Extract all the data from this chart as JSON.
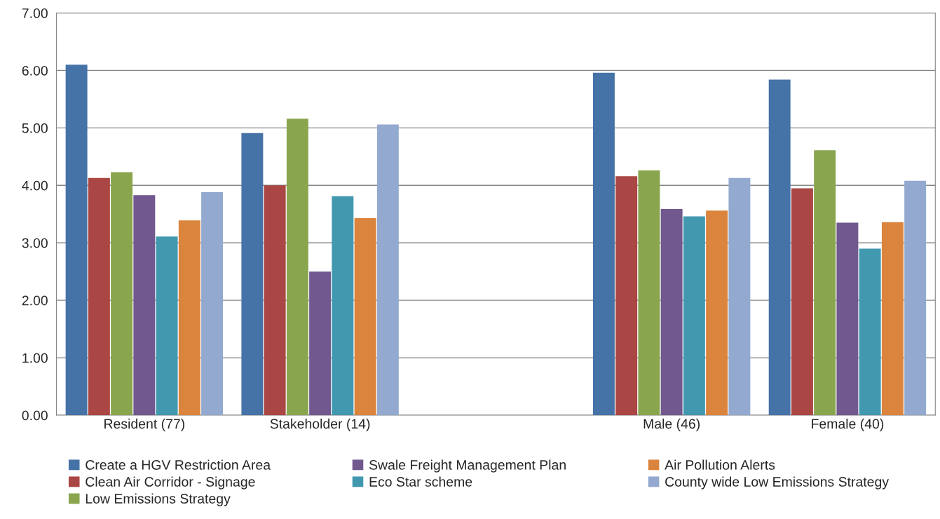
{
  "chart_data": {
    "type": "bar",
    "categories": [
      "Resident (77)",
      "Stakeholder (14)",
      null,
      "Male (46)",
      "Female (40)"
    ],
    "series": [
      {
        "name": "Create a HGV Restriction Area",
        "color": "#4572a7",
        "values": [
          6.1,
          4.91,
          null,
          5.96,
          5.84
        ]
      },
      {
        "name": "Clean Air Corridor - Signage",
        "color": "#aa4643",
        "values": [
          4.13,
          4.0,
          null,
          4.16,
          3.95
        ]
      },
      {
        "name": "Low Emissions Strategy",
        "color": "#89a54e",
        "values": [
          4.23,
          5.16,
          null,
          4.26,
          4.61
        ]
      },
      {
        "name": "Swale Freight Management Plan",
        "color": "#71588f",
        "values": [
          3.83,
          2.5,
          null,
          3.59,
          3.35
        ]
      },
      {
        "name": "Eco Star scheme",
        "color": "#4198af",
        "values": [
          3.11,
          3.81,
          null,
          3.46,
          2.9
        ]
      },
      {
        "name": "Air Pollution Alerts",
        "color": "#db843d",
        "values": [
          3.39,
          3.43,
          null,
          3.56,
          3.36
        ]
      },
      {
        "name": "County wide Low Emissions Strategy",
        "color": "#93a9cf",
        "values": [
          3.88,
          5.06,
          null,
          4.13,
          4.08
        ]
      }
    ],
    "ylim": [
      0,
      7
    ],
    "yticks": [
      {
        "value": 0,
        "label": "0.00"
      },
      {
        "value": 1,
        "label": "1.00"
      },
      {
        "value": 2,
        "label": "2.00"
      },
      {
        "value": 3,
        "label": "3.00"
      },
      {
        "value": 4,
        "label": "4.00"
      },
      {
        "value": 5,
        "label": "5.00"
      },
      {
        "value": 6,
        "label": "6.00"
      },
      {
        "value": 7,
        "label": "7.00"
      }
    ],
    "grid": "y",
    "legend": "bottom"
  }
}
